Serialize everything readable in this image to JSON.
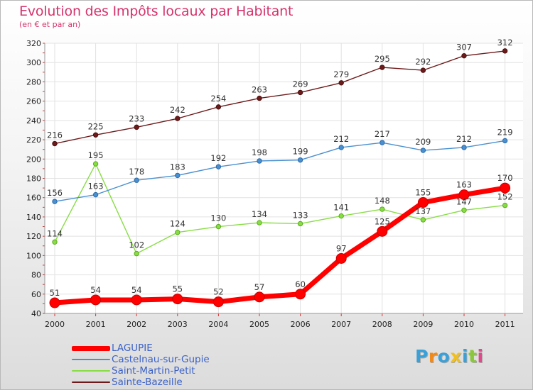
{
  "header": {
    "title": "Evolution des Impôts locaux par Habitant",
    "subtitle": "(en € et par an)"
  },
  "logo": {
    "text": "Proxiti",
    "colors": [
      "#3aa0d8",
      "#f08a1c",
      "#3aa0d8",
      "#f0c020",
      "#3aa0d8",
      "#8cc63f",
      "#e04a8a"
    ]
  },
  "chart_data": {
    "type": "line",
    "title": "Evolution des Impôts locaux par Habitant",
    "subtitle": "(en € et par an)",
    "x": [
      "2000",
      "2001",
      "2002",
      "2003",
      "2004",
      "2005",
      "2006",
      "2007",
      "2008",
      "2009",
      "2010",
      "2011"
    ],
    "ylim": [
      40,
      320
    ],
    "yticks": [
      40,
      60,
      80,
      100,
      120,
      140,
      160,
      180,
      200,
      220,
      240,
      260,
      280,
      300,
      320
    ],
    "grid": true,
    "legend_placement": "bottom-left",
    "series": [
      {
        "name": "LAGUPIE",
        "color": "#ff0000",
        "values": [
          51,
          54,
          54,
          55,
          52,
          57,
          60,
          97,
          125,
          155,
          163,
          170
        ]
      },
      {
        "name": "Castelnau-sur-Gupie",
        "color": "#4a90d0",
        "values": [
          156,
          163,
          178,
          183,
          192,
          198,
          199,
          212,
          217,
          209,
          212,
          219
        ]
      },
      {
        "name": "Saint-Martin-Petit",
        "color": "#88dd44",
        "values": [
          114,
          195,
          102,
          124,
          130,
          134,
          133,
          141,
          148,
          137,
          147,
          152
        ]
      },
      {
        "name": "Sainte-Bazeille",
        "color": "#6e1a1a",
        "values": [
          216,
          225,
          233,
          242,
          254,
          263,
          269,
          279,
          295,
          292,
          307,
          312
        ]
      }
    ]
  }
}
